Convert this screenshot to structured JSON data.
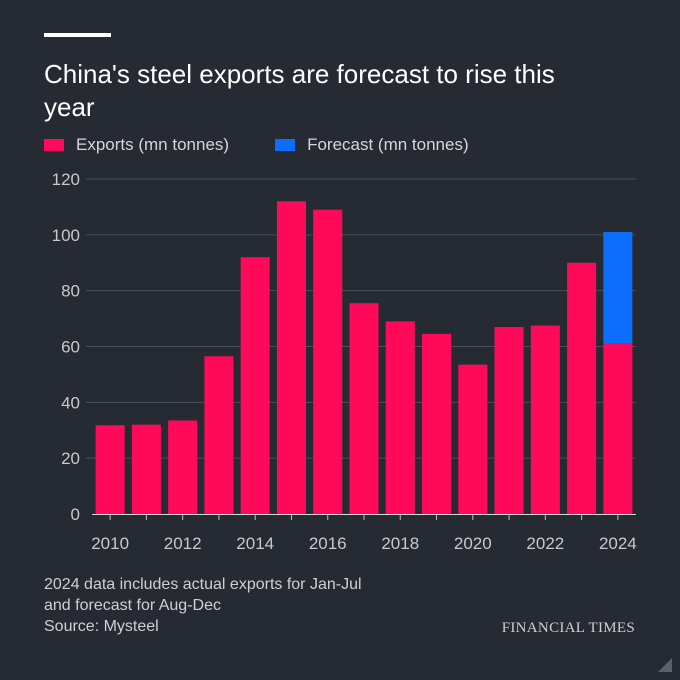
{
  "title": "China's steel exports are forecast to rise this year",
  "legend": {
    "exports_label": "Exports (mn tonnes)",
    "forecast_label": "Forecast (mn tonnes)"
  },
  "colors": {
    "exports": "#ff0a5a",
    "forecast": "#0d6efd",
    "background": "#262a33",
    "grid": "#4a4f59",
    "axis_text": "#c9c9c9"
  },
  "chart_data": {
    "type": "bar",
    "stacked": true,
    "title": "China's steel exports are forecast to rise this year",
    "xlabel": "",
    "ylabel": "",
    "ylim": [
      0,
      120
    ],
    "yticks": [
      0,
      20,
      40,
      60,
      80,
      100,
      120
    ],
    "categories": [
      "2010",
      "2011",
      "2012",
      "2013",
      "2014",
      "2015",
      "2016",
      "2017",
      "2018",
      "2019",
      "2020",
      "2021",
      "2022",
      "2023",
      "2024"
    ],
    "xtick_labels": [
      "2010",
      "",
      "2012",
      "",
      "2014",
      "",
      "2016",
      "",
      "2018",
      "",
      "2020",
      "",
      "2022",
      "",
      "2024"
    ],
    "series": [
      {
        "name": "Exports (mn tonnes)",
        "values": [
          31.8,
          32.0,
          33.5,
          56.5,
          92.0,
          112.0,
          109.0,
          75.5,
          69.0,
          64.5,
          53.5,
          67.0,
          67.5,
          90.0,
          61.0
        ]
      },
      {
        "name": "Forecast (mn tonnes)",
        "values": [
          0,
          0,
          0,
          0,
          0,
          0,
          0,
          0,
          0,
          0,
          0,
          0,
          0,
          0,
          40.0
        ]
      }
    ],
    "grid": true,
    "legend_position": "top-left"
  },
  "footnote": {
    "line1": "2024 data includes actual exports for Jan-Jul",
    "line2": "and forecast for Aug-Dec",
    "line3": "Source: Mysteel"
  },
  "brand": "FINANCIAL TIMES"
}
